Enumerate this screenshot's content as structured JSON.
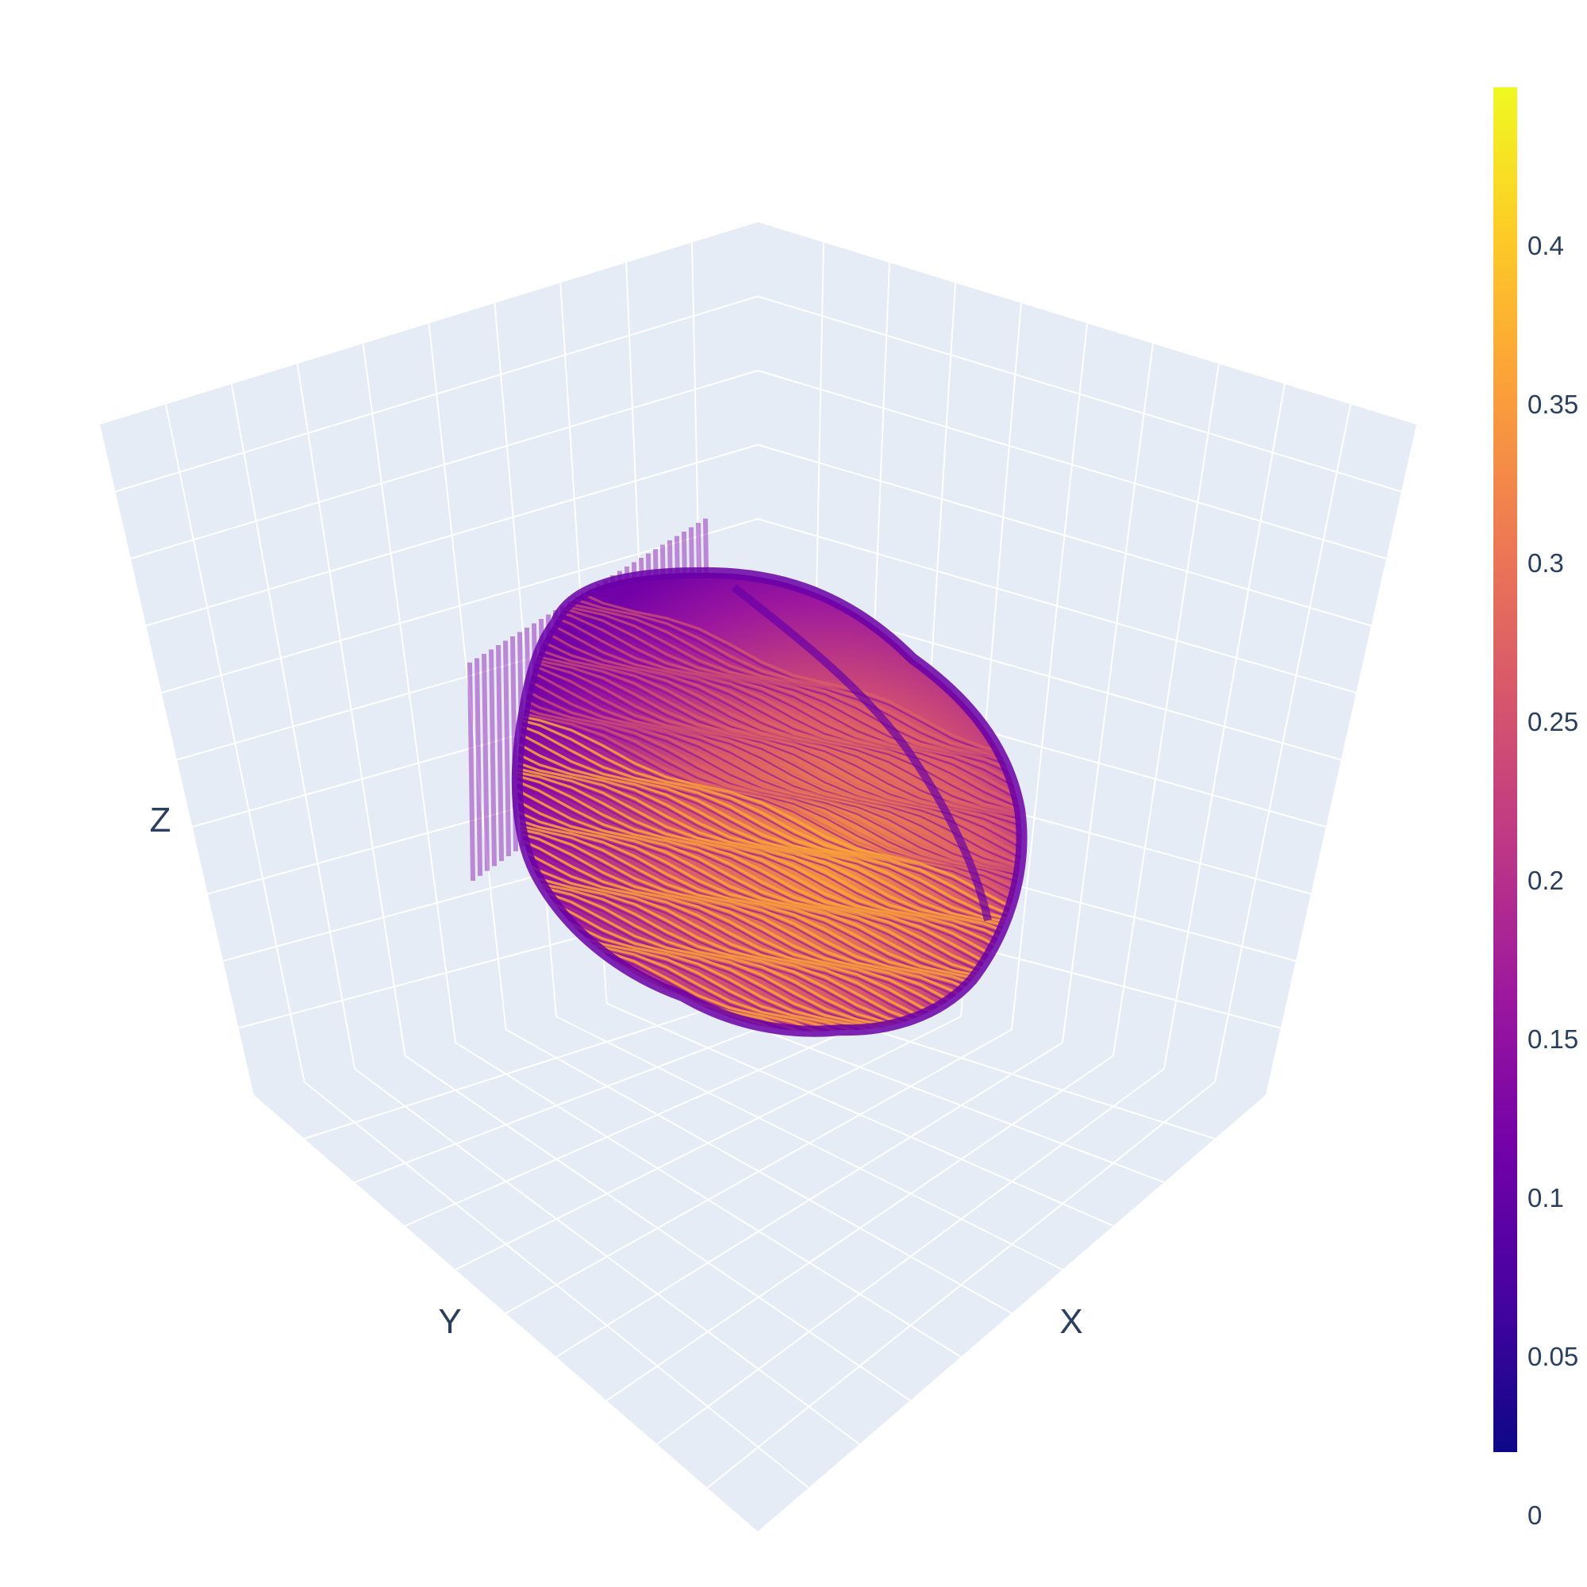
{
  "chart_data": {
    "type": "volume",
    "title": "",
    "axes": {
      "x_title": "X",
      "y_title": "Y",
      "z_title": "Z"
    },
    "grid": true,
    "axis_ticks_shown": false,
    "colorscale": "plasma",
    "colorscale_stops": [
      "#0d0887",
      "#46039f",
      "#7201a8",
      "#9c179e",
      "#bd3786",
      "#d8576b",
      "#ed7953",
      "#fb9f3a",
      "#fdca26",
      "#f0f921"
    ],
    "colorbar": {
      "range": [
        0.02,
        0.45
      ],
      "ticks": [
        {
          "value": 0.4,
          "label": "0.4"
        },
        {
          "value": 0.35,
          "label": "0.35"
        },
        {
          "value": 0.3,
          "label": "0.3"
        },
        {
          "value": 0.25,
          "label": "0.25"
        },
        {
          "value": 0.2,
          "label": "0.2"
        },
        {
          "value": 0.15,
          "label": "0.15"
        },
        {
          "value": 0.1,
          "label": "0.1"
        },
        {
          "value": 0.05,
          "label": "0.05"
        },
        {
          "value": 0,
          "label": "0"
        }
      ]
    },
    "colors": {
      "background": "#ffffff",
      "scene_bg": "#e5ecf6",
      "grid": "#ffffff",
      "text": "#2a3f5f"
    }
  }
}
